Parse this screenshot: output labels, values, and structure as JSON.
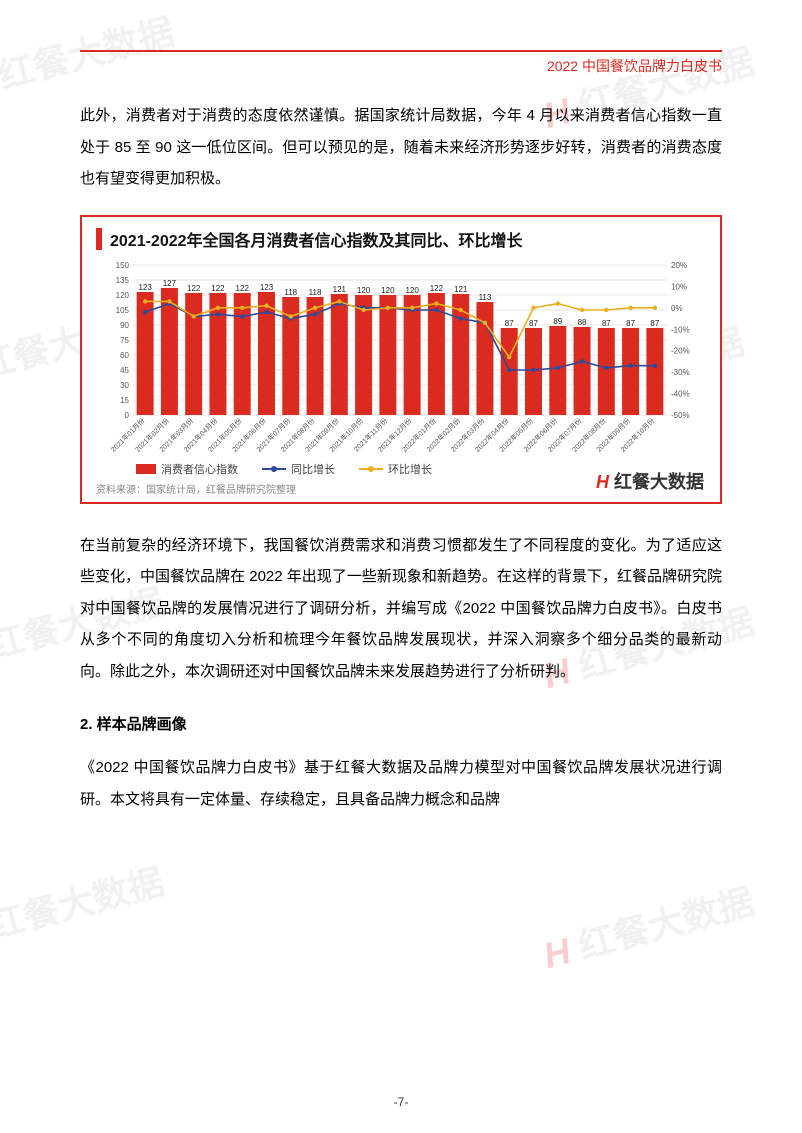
{
  "header": {
    "title": "2022 中国餐饮品牌力白皮书"
  },
  "para1": "此外，消费者对于消费的态度依然谨慎。据国家统计局数据，今年 4 月以来消费者信心指数一直处于 85 至 90 这一低位区间。但可以预见的是，随着未来经济形势逐步好转，消费者的消费态度也有望变得更加积极。",
  "para2": "在当前复杂的经济环境下，我国餐饮消费需求和消费习惯都发生了不同程度的变化。为了适应这些变化，中国餐饮品牌在 2022 年出现了一些新现象和新趋势。在这样的背景下，红餐品牌研究院对中国餐饮品牌的发展情况进行了调研分析，并编写成《2022 中国餐饮品牌力白皮书》。白皮书从多个不同的角度切入分析和梳理今年餐饮品牌发展现状，并深入洞察多个细分品类的最新动向。除此之外，本次调研还对中国餐饮品牌未来发展趋势进行了分析研判。",
  "section2": "2. 样本品牌画像",
  "para3": "《2022 中国餐饮品牌力白皮书》基于红餐大数据及品牌力模型对中国餐饮品牌发展状况进行调研。本文将具有一定体量、存续稳定，且具备品牌力概念和品牌",
  "pagenum": "-7-",
  "watermark_text": "红餐大数据",
  "chart": {
    "type": "bar_line_combo",
    "title": "2021-2022年全国各月消费者信心指数及其同比、环比增长",
    "categories": [
      "2021年01月份",
      "2021年02月份",
      "2021年03月份",
      "2021年04月份",
      "2021年05月份",
      "2021年06月份",
      "2021年07月份",
      "2021年08月份",
      "2021年09月份",
      "2021年10月份",
      "2021年11月份",
      "2021年12月份",
      "2022年01月份",
      "2022年02月份",
      "2022年03月份",
      "2022年04月份",
      "2022年05月份",
      "2022年06月份",
      "2022年07月份",
      "2022年08月份",
      "2022年09月份",
      "2022年10月份"
    ],
    "bar_values": [
      123,
      127,
      122,
      122,
      122,
      123,
      118,
      118,
      121,
      120,
      120,
      120,
      122,
      121,
      113,
      87,
      87,
      89,
      88,
      87,
      87,
      87
    ],
    "line_yoy": [
      -2,
      2,
      -4,
      -3,
      -4,
      -2,
      -5,
      -3,
      2,
      0,
      0,
      -1,
      -1,
      -5,
      -7,
      -29,
      -29,
      -28,
      -25,
      -28,
      -27,
      -27
    ],
    "line_mom": [
      3,
      3,
      -4,
      0,
      0,
      1,
      -4,
      0,
      3,
      -1,
      0,
      0,
      2,
      -1,
      -7,
      -23,
      0,
      2,
      -1,
      -1,
      0,
      0
    ],
    "bar_color": "#d92b1f",
    "yoy_color": "#2e4a9c",
    "mom_color": "#e8b020",
    "left_axis": {
      "min": 0,
      "max": 150,
      "step": 15,
      "label": ""
    },
    "right_axis": {
      "min": -50,
      "max": 20,
      "step": 10,
      "suffix": "%"
    },
    "grid_color": "#e5e5e5",
    "background_color": "#ffffff",
    "legend": [
      {
        "label": "消费者信心指数",
        "type": "bar",
        "color": "#d92b1f"
      },
      {
        "label": "同比增长",
        "type": "line",
        "color": "#2e4a9c"
      },
      {
        "label": "环比增长",
        "type": "line",
        "color": "#e8b020"
      }
    ],
    "source": "资料来源：国家统计局，红餐品牌研究院整理",
    "brand": "红餐大数据"
  }
}
